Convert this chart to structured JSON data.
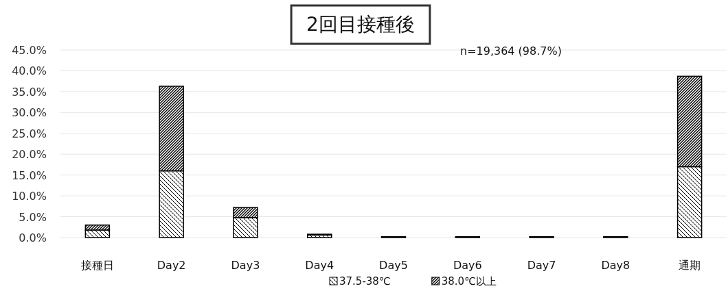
{
  "chart_data": {
    "type": "bar",
    "title": "2回目接種後",
    "subtitle": "n=19,364 (98.7%)",
    "categories": [
      "接種日",
      "Day2",
      "Day3",
      "Day4",
      "Day5",
      "Day6",
      "Day7",
      "Day8",
      "通期"
    ],
    "stacked": true,
    "series": [
      {
        "name": "37.5-38℃",
        "color": "#000000",
        "values": [
          1.8,
          16.0,
          4.8,
          0.6,
          0.2,
          0.2,
          0.2,
          0.2,
          17.0
        ]
      },
      {
        "name": "38.0℃以上",
        "color": "#000000",
        "values": [
          1.2,
          20.3,
          2.4,
          0.2,
          null,
          null,
          null,
          null,
          21.7
        ]
      }
    ],
    "ylim": [
      0,
      45
    ],
    "yticks": [
      {
        "value": 0,
        "label": "0.0%"
      },
      {
        "value": 5,
        "label": "5.0%"
      },
      {
        "value": 10,
        "label": "10.0%"
      },
      {
        "value": 15,
        "label": "15.0%"
      },
      {
        "value": 20,
        "label": "20.0%"
      },
      {
        "value": 25,
        "label": "25.0%"
      },
      {
        "value": 30,
        "label": "30.0%"
      },
      {
        "value": 35,
        "label": "35.0%"
      },
      {
        "value": 40,
        "label": "40.0%"
      },
      {
        "value": 45,
        "label": "45.0%"
      }
    ],
    "grid": "y",
    "legend": "bottom"
  }
}
